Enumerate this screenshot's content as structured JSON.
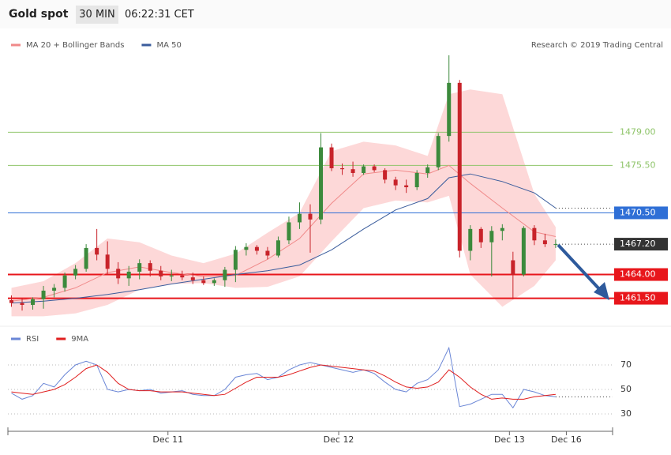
{
  "header": {
    "title": "Gold spot",
    "interval": "30 MIN",
    "time": "06:22:31 CET",
    "credit": "Research © 2019 Trading Central"
  },
  "chart_data": [
    {
      "type": "candlestick",
      "xlim": [
        0,
        170
      ],
      "ylim": [
        1458.8,
        1489.6
      ],
      "up_color": "#3c8a3c",
      "down_color": "#c8232a",
      "x": [
        1,
        4,
        7,
        10,
        13,
        16,
        19,
        22,
        25,
        28,
        31,
        34,
        37,
        40,
        43,
        46,
        49,
        52,
        55,
        58,
        61,
        64,
        67,
        70,
        73,
        76,
        79,
        82,
        85,
        88,
        91,
        94,
        97,
        100,
        103,
        106,
        109,
        112,
        115,
        118,
        121,
        124,
        127,
        130,
        133,
        136,
        139,
        142,
        145,
        148,
        151,
        154
      ],
      "open": [
        1461.3,
        1461.0,
        1460.8,
        1461.4,
        1462.3,
        1462.6,
        1463.9,
        1464.6,
        1466.8,
        1466.1,
        1464.6,
        1463.6,
        1464.3,
        1465.2,
        1464.4,
        1463.8,
        1463.9,
        1463.7,
        1463.4,
        1463.1,
        1463.4,
        1464.5,
        1466.6,
        1466.9,
        1466.5,
        1466.0,
        1467.6,
        1469.5,
        1470.4,
        1469.8,
        1477.4,
        1475.2,
        1475.1,
        1474.7,
        1475.4,
        1475.0,
        1474.0,
        1473.4,
        1473.2,
        1474.7,
        1475.3,
        1478.6,
        1484.2,
        1466.5,
        1468.8,
        1467.4,
        1468.6,
        1465.5,
        1464.0,
        1468.9,
        1467.6,
        1467.2
      ],
      "high": [
        1461.8,
        1461.5,
        1461.6,
        1462.8,
        1463.0,
        1464.2,
        1465.0,
        1467.2,
        1468.8,
        1467.5,
        1465.3,
        1464.9,
        1465.6,
        1465.5,
        1464.9,
        1464.5,
        1464.4,
        1464.2,
        1463.8,
        1463.6,
        1464.8,
        1467.0,
        1467.3,
        1467.1,
        1466.9,
        1468.0,
        1470.1,
        1471.6,
        1471.4,
        1478.9,
        1477.8,
        1475.7,
        1475.9,
        1475.6,
        1475.6,
        1475.2,
        1474.3,
        1474.0,
        1475.0,
        1475.6,
        1478.9,
        1487.1,
        1484.5,
        1469.2,
        1469.0,
        1469.1,
        1469.3,
        1466.4,
        1469.1,
        1469.2,
        1468.3,
        1467.7
      ],
      "low": [
        1460.6,
        1460.2,
        1460.3,
        1460.4,
        1461.6,
        1462.2,
        1463.5,
        1464.3,
        1465.5,
        1464.0,
        1463.0,
        1462.8,
        1463.5,
        1463.8,
        1463.4,
        1463.3,
        1463.4,
        1463.0,
        1462.9,
        1462.8,
        1462.7,
        1463.2,
        1466.0,
        1466.1,
        1465.6,
        1465.8,
        1467.2,
        1468.8,
        1466.3,
        1469.3,
        1474.9,
        1474.5,
        1474.3,
        1474.5,
        1474.8,
        1473.6,
        1472.9,
        1472.6,
        1472.9,
        1474.2,
        1475.0,
        1478.0,
        1465.8,
        1465.5,
        1466.8,
        1463.8,
        1467.6,
        1461.4,
        1463.8,
        1467.1,
        1466.9,
        1466.8
      ],
      "close": [
        1461.0,
        1460.8,
        1461.4,
        1462.3,
        1462.6,
        1463.9,
        1464.6,
        1466.8,
        1466.1,
        1464.6,
        1463.6,
        1464.3,
        1465.2,
        1464.4,
        1463.8,
        1463.9,
        1463.7,
        1463.4,
        1463.1,
        1463.4,
        1464.5,
        1466.6,
        1466.9,
        1466.5,
        1466.0,
        1467.6,
        1469.5,
        1470.4,
        1469.8,
        1477.4,
        1475.2,
        1475.1,
        1474.7,
        1475.4,
        1475.0,
        1474.0,
        1473.4,
        1473.2,
        1474.7,
        1475.3,
        1478.6,
        1484.2,
        1466.5,
        1468.8,
        1467.4,
        1468.6,
        1468.9,
        1464.0,
        1468.9,
        1467.6,
        1467.2,
        1467.2
      ],
      "series": [
        {
          "name": "MA 20 + Bollinger Bands",
          "color": "#f08a8a",
          "band_color": "#fdd8d8",
          "x": [
            1,
            10,
            19,
            28,
            37,
            46,
            55,
            64,
            73,
            82,
            91,
            100,
            109,
            118,
            124,
            130,
            139,
            148,
            154
          ],
          "values": [
            1461.2,
            1461.6,
            1462.6,
            1464.2,
            1464.8,
            1464.2,
            1463.8,
            1463.9,
            1465.6,
            1467.8,
            1471.5,
            1474.6,
            1475.0,
            1474.6,
            1475.5,
            1473.6,
            1471.0,
            1468.5,
            1468.0
          ],
          "upper": [
            1462.6,
            1463.3,
            1465.2,
            1467.8,
            1467.4,
            1466.0,
            1465.2,
            1466.2,
            1468.4,
            1470.5,
            1477.0,
            1478.0,
            1477.6,
            1476.5,
            1483.0,
            1483.5,
            1483.0,
            1472.5,
            1469.0
          ],
          "lower": [
            1459.6,
            1459.6,
            1459.9,
            1460.8,
            1462.4,
            1463.0,
            1463.1,
            1462.6,
            1462.7,
            1463.8,
            1467.5,
            1471.0,
            1471.8,
            1471.6,
            1472.3,
            1464.0,
            1460.6,
            1462.8,
            1465.5
          ]
        },
        {
          "name": "MA 50",
          "color": "#3a5c9c",
          "x": [
            1,
            10,
            19,
            28,
            37,
            46,
            55,
            64,
            73,
            82,
            91,
            100,
            109,
            118,
            124,
            130,
            139,
            148,
            154
          ],
          "values": [
            1461.0,
            1461.2,
            1461.5,
            1461.9,
            1462.4,
            1463.0,
            1463.5,
            1464.0,
            1464.4,
            1465.0,
            1466.6,
            1468.8,
            1470.8,
            1472.0,
            1474.2,
            1474.6,
            1473.8,
            1472.6,
            1471.0
          ]
        }
      ],
      "levels": [
        {
          "value": 1479,
          "label": "1479.00",
          "color": "#8fc46a",
          "boxed": false,
          "dotted": false
        },
        {
          "value": 1475.5,
          "label": "1475.50",
          "color": "#8fc46a",
          "boxed": false,
          "dotted": false
        },
        {
          "value": 1470.5,
          "label": "1470.50",
          "color": "#2f6fd6",
          "boxed": true,
          "dotted": false
        },
        {
          "value": 1467.2,
          "label": "1467.20",
          "color": "#333333",
          "boxed": true,
          "dotted": true
        },
        {
          "value": 1464,
          "label": "1464.00",
          "color": "#e8161b",
          "boxed": true,
          "dotted": false
        },
        {
          "value": 1461.5,
          "label": "1461.50",
          "color": "#e8161b",
          "boxed": true,
          "dotted": false
        }
      ]
    },
    {
      "type": "line",
      "xlim": [
        0,
        170
      ],
      "ylim": [
        19.7,
        100.3
      ],
      "yticks": [
        70,
        50,
        30
      ],
      "grid": true,
      "xticks": [
        {
          "value": 45,
          "label": "Dec 11"
        },
        {
          "value": 93,
          "label": "Dec 12"
        },
        {
          "value": 141,
          "label": "Dec 13"
        },
        {
          "value": 157,
          "label": "Dec 16"
        }
      ],
      "x": [
        1,
        4,
        7,
        10,
        13,
        16,
        19,
        22,
        25,
        28,
        31,
        34,
        37,
        40,
        43,
        46,
        49,
        52,
        55,
        58,
        61,
        64,
        67,
        70,
        73,
        76,
        79,
        82,
        85,
        88,
        91,
        94,
        97,
        100,
        103,
        106,
        109,
        112,
        115,
        118,
        121,
        124,
        127,
        130,
        133,
        136,
        139,
        142,
        145,
        148,
        151,
        154
      ],
      "series": [
        {
          "name": "RSI",
          "color": "#6a86d6",
          "values": [
            47,
            42,
            45,
            55,
            52,
            62,
            70,
            73,
            70,
            50,
            48,
            50,
            49,
            50,
            47,
            48,
            49,
            46,
            45,
            45,
            50,
            60,
            62,
            63,
            58,
            60,
            66,
            70,
            72,
            70,
            68,
            66,
            64,
            66,
            63,
            56,
            50,
            48,
            55,
            58,
            66,
            84,
            36,
            38,
            42,
            46,
            46,
            35,
            50,
            48,
            45,
            44
          ]
        },
        {
          "name": "9MA",
          "color": "#e01e1e",
          "values": [
            48,
            47,
            46,
            48,
            50,
            54,
            60,
            67,
            70,
            64,
            55,
            50,
            49,
            49,
            48,
            48,
            48,
            47,
            46,
            45,
            46,
            51,
            56,
            60,
            60,
            60,
            62,
            65,
            68,
            70,
            69,
            68,
            67,
            66,
            65,
            61,
            56,
            52,
            51,
            52,
            56,
            66,
            60,
            52,
            46,
            42,
            43,
            42,
            42,
            44,
            45,
            46
          ]
        }
      ]
    }
  ]
}
